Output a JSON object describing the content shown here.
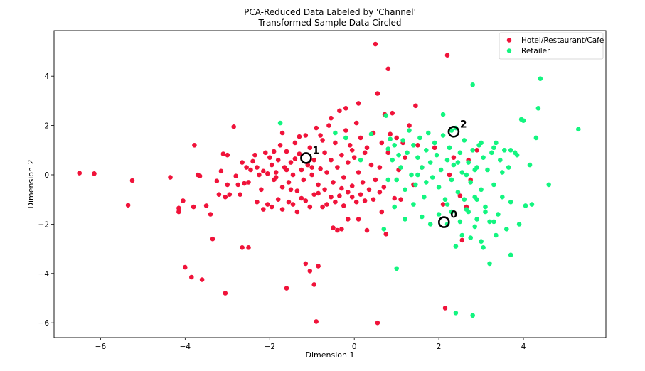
{
  "chart_data": {
    "type": "scatter",
    "title": "PCA-Reduced Data Labeled by 'Channel'",
    "subtitle": "Transformed Sample Data Circled",
    "xlabel": "Dimension 1",
    "ylabel": "Dimension 2",
    "xlim": [
      -7.1,
      5.95
    ],
    "ylim": [
      -6.6,
      5.85
    ],
    "xticks": [
      -6,
      -4,
      -2,
      0,
      2,
      4
    ],
    "yticks": [
      -6,
      -4,
      -2,
      0,
      2,
      4
    ],
    "legend_position": "top-right",
    "series": [
      {
        "name": "Hotel/Restaurant/Cafe",
        "color": "#f0133a",
        "points": [
          [
            -6.5,
            0.07
          ],
          [
            -6.15,
            0.05
          ],
          [
            -5.35,
            -1.23
          ],
          [
            -5.25,
            -0.23
          ],
          [
            -4.35,
            -0.1
          ],
          [
            -4.15,
            -1.35
          ],
          [
            -4.15,
            -1.5
          ],
          [
            -4.05,
            -1.05
          ],
          [
            -4.0,
            -3.75
          ],
          [
            -3.85,
            -4.15
          ],
          [
            -3.8,
            -1.3
          ],
          [
            -3.78,
            1.2
          ],
          [
            -3.7,
            0.0
          ],
          [
            -3.65,
            -0.05
          ],
          [
            -3.5,
            -1.25
          ],
          [
            -3.4,
            -1.6
          ],
          [
            -3.35,
            -2.6
          ],
          [
            -3.25,
            -0.25
          ],
          [
            -3.2,
            -0.8
          ],
          [
            -3.15,
            0.15
          ],
          [
            -3.1,
            0.85
          ],
          [
            -3.0,
            0.8
          ],
          [
            -3.05,
            -0.9
          ],
          [
            -3.0,
            -0.4
          ],
          [
            -2.95,
            -0.8
          ],
          [
            -2.85,
            1.95
          ],
          [
            -2.8,
            -0.05
          ],
          [
            -2.75,
            -0.4
          ],
          [
            -2.7,
            -0.8
          ],
          [
            -2.65,
            0.5
          ],
          [
            -2.6,
            -0.35
          ],
          [
            -2.55,
            0.3
          ],
          [
            -2.5,
            -0.3
          ],
          [
            -2.45,
            0.2
          ],
          [
            -2.4,
            0.55
          ],
          [
            -2.35,
            0.8
          ],
          [
            -2.3,
            0.3
          ],
          [
            -2.25,
            0.0
          ],
          [
            -2.2,
            -0.6
          ],
          [
            -2.15,
            0.15
          ],
          [
            -2.1,
            0.9
          ],
          [
            -2.0,
            0.7
          ],
          [
            -1.95,
            0.4
          ],
          [
            -1.9,
            -0.2
          ],
          [
            -1.85,
            0.1
          ],
          [
            -1.8,
            0.6
          ],
          [
            -1.75,
            1.2
          ],
          [
            -1.7,
            -0.5
          ],
          [
            -1.65,
            0.3
          ],
          [
            -1.6,
            0.95
          ],
          [
            -1.55,
            -0.3
          ],
          [
            -1.5,
            0.5
          ],
          [
            -1.45,
            0.0
          ],
          [
            -1.4,
            1.3
          ],
          [
            -1.35,
            -0.65
          ],
          [
            -1.3,
            0.85
          ],
          [
            -1.25,
            0.2
          ],
          [
            -1.2,
            -0.2
          ],
          [
            -1.15,
            1.6
          ],
          [
            -1.1,
            0.4
          ],
          [
            -1.05,
            1.1
          ],
          [
            -1.0,
            0.0
          ],
          [
            -0.95,
            0.6
          ],
          [
            -0.9,
            1.9
          ],
          [
            -0.85,
            -0.4
          ],
          [
            -0.8,
            0.25
          ],
          [
            -0.75,
            1.4
          ],
          [
            -0.7,
            0.9
          ],
          [
            -0.65,
            0.1
          ],
          [
            -0.6,
            2.0
          ],
          [
            -0.55,
            0.6
          ],
          [
            -0.5,
            -0.3
          ],
          [
            -0.45,
            1.3
          ],
          [
            -0.4,
            0.3
          ],
          [
            -0.35,
            2.6
          ],
          [
            -0.3,
            0.8
          ],
          [
            -0.25,
            -0.1
          ],
          [
            -0.2,
            1.8
          ],
          [
            -0.15,
            0.5
          ],
          [
            -0.1,
            1.2
          ],
          [
            -0.05,
            -0.45
          ],
          [
            0.0,
            0.7
          ],
          [
            0.05,
            2.1
          ],
          [
            0.1,
            0.1
          ],
          [
            0.15,
            1.5
          ],
          [
            0.2,
            -0.3
          ],
          [
            0.25,
            0.9
          ],
          [
            0.3,
            1.1
          ],
          [
            0.35,
            -0.6
          ],
          [
            0.4,
            0.4
          ],
          [
            0.45,
            1.7
          ],
          [
            0.5,
            -0.2
          ],
          [
            0.55,
            3.3
          ],
          [
            0.6,
            0.3
          ],
          [
            0.65,
            1.3
          ],
          [
            0.7,
            -0.5
          ],
          [
            0.72,
            2.45
          ],
          [
            0.5,
            5.3
          ],
          [
            0.8,
            4.3
          ],
          [
            0.85,
            1.65
          ],
          [
            0.9,
            2.5
          ],
          [
            0.95,
            -0.95
          ],
          [
            1.0,
            1.5
          ],
          [
            1.05,
            0.2
          ],
          [
            1.1,
            -1.0
          ],
          [
            1.2,
            0.7
          ],
          [
            1.3,
            2.0
          ],
          [
            1.4,
            -0.4
          ],
          [
            1.45,
            2.8
          ],
          [
            1.5,
            1.2
          ],
          [
            1.6,
            0.3
          ],
          [
            2.2,
            4.85
          ],
          [
            2.1,
            -1.2
          ],
          [
            2.25,
            0.0
          ],
          [
            2.35,
            0.7
          ],
          [
            2.5,
            -0.85
          ],
          [
            2.55,
            -2.65
          ],
          [
            2.65,
            -1.3
          ],
          [
            2.7,
            0.6
          ],
          [
            2.75,
            -0.2
          ],
          [
            2.9,
            1.0
          ],
          [
            2.15,
            -5.4
          ],
          [
            -3.6,
            -4.25
          ],
          [
            -3.05,
            -4.8
          ],
          [
            -2.65,
            -2.95
          ],
          [
            -2.5,
            -2.95
          ],
          [
            -1.6,
            -4.6
          ],
          [
            -1.15,
            -3.6
          ],
          [
            -0.95,
            -4.45
          ],
          [
            -0.9,
            -5.95
          ],
          [
            -1.05,
            -3.9
          ],
          [
            -0.85,
            -3.7
          ],
          [
            -0.5,
            -2.15
          ],
          [
            -0.4,
            -2.25
          ],
          [
            -0.3,
            -2.2
          ],
          [
            -0.15,
            -1.8
          ],
          [
            0.1,
            -1.8
          ],
          [
            0.3,
            -2.25
          ],
          [
            0.55,
            -6.0
          ],
          [
            0.75,
            -2.4
          ],
          [
            -2.3,
            -1.1
          ],
          [
            -2.15,
            -1.4
          ],
          [
            -2.05,
            -1.2
          ],
          [
            -1.95,
            -1.3
          ],
          [
            -1.8,
            -1.0
          ],
          [
            -1.7,
            -1.4
          ],
          [
            -1.55,
            -1.1
          ],
          [
            -1.45,
            -1.2
          ],
          [
            -1.35,
            -1.5
          ],
          [
            -1.25,
            -0.95
          ],
          [
            -1.15,
            -1.05
          ],
          [
            -1.05,
            -1.3
          ],
          [
            -0.95,
            -0.8
          ],
          [
            -0.85,
            -0.75
          ],
          [
            -0.75,
            -1.3
          ],
          [
            -0.65,
            -1.2
          ],
          [
            -0.55,
            -0.9
          ],
          [
            -0.45,
            -1.1
          ],
          [
            -0.35,
            -0.85
          ],
          [
            -0.25,
            -1.25
          ],
          [
            -0.15,
            -0.7
          ],
          [
            -0.05,
            -0.9
          ],
          [
            0.05,
            -1.1
          ],
          [
            0.15,
            -0.8
          ],
          [
            0.25,
            -1.05
          ],
          [
            0.45,
            -1.0
          ],
          [
            0.6,
            -0.7
          ],
          [
            0.65,
            -1.5
          ],
          [
            -1.9,
            0.95
          ],
          [
            -1.7,
            1.7
          ],
          [
            -1.3,
            1.55
          ],
          [
            -0.8,
            1.6
          ],
          [
            -0.55,
            2.3
          ],
          [
            -0.2,
            2.7
          ],
          [
            0.1,
            2.9
          ],
          [
            -0.05,
            1.0
          ],
          [
            -1.0,
            0.3
          ],
          [
            -1.4,
            0.65
          ],
          [
            -1.6,
            0.2
          ],
          [
            -1.85,
            -0.1
          ],
          [
            -2.05,
            0.05
          ],
          [
            -1.5,
            -0.6
          ],
          [
            -0.7,
            -0.6
          ],
          [
            -0.3,
            -0.55
          ],
          [
            0.8,
            0.9
          ],
          [
            1.15,
            1.3
          ],
          [
            1.9,
            1.1
          ]
        ]
      },
      {
        "name": "Retailer",
        "color": "#13f580",
        "points": [
          [
            -1.75,
            2.1
          ],
          [
            -0.45,
            1.7
          ],
          [
            -0.2,
            1.5
          ],
          [
            0.15,
            0.6
          ],
          [
            0.4,
            1.65
          ],
          [
            0.75,
            2.4
          ],
          [
            0.8,
            1.05
          ],
          [
            0.85,
            1.45
          ],
          [
            0.9,
            0.6
          ],
          [
            0.95,
            1.2
          ],
          [
            1.0,
            -0.2
          ],
          [
            1.05,
            0.8
          ],
          [
            1.1,
            0.3
          ],
          [
            1.15,
            1.4
          ],
          [
            1.2,
            -0.6
          ],
          [
            1.25,
            0.9
          ],
          [
            1.3,
            1.8
          ],
          [
            1.35,
            0.0
          ],
          [
            1.4,
            1.2
          ],
          [
            1.45,
            -0.4
          ],
          [
            1.5,
            0.7
          ],
          [
            1.55,
            1.5
          ],
          [
            1.6,
            0.3
          ],
          [
            1.65,
            -0.9
          ],
          [
            1.7,
            1.0
          ],
          [
            1.75,
            1.7
          ],
          [
            1.8,
            0.5
          ],
          [
            1.85,
            -0.1
          ],
          [
            1.9,
            1.3
          ],
          [
            1.95,
            0.8
          ],
          [
            2.0,
            -0.5
          ],
          [
            2.05,
            0.2
          ],
          [
            2.1,
            1.6
          ],
          [
            2.15,
            -1.0
          ],
          [
            2.2,
            0.6
          ],
          [
            2.25,
            1.1
          ],
          [
            2.3,
            -0.2
          ],
          [
            2.35,
            0.4
          ],
          [
            2.4,
            1.9
          ],
          [
            2.45,
            -0.7
          ],
          [
            2.5,
            0.9
          ],
          [
            2.55,
            0.1
          ],
          [
            2.6,
            1.4
          ],
          [
            2.65,
            -1.4
          ],
          [
            2.7,
            0.5
          ],
          [
            2.75,
            -0.3
          ],
          [
            2.8,
            1.0
          ],
          [
            2.85,
            -0.9
          ],
          [
            2.9,
            0.3
          ],
          [
            2.95,
            1.2
          ],
          [
            3.0,
            -0.6
          ],
          [
            3.05,
            0.7
          ],
          [
            3.1,
            -1.3
          ],
          [
            3.15,
            0.2
          ],
          [
            3.2,
            -1.9
          ],
          [
            3.25,
            0.9
          ],
          [
            3.3,
            -0.4
          ],
          [
            3.35,
            1.3
          ],
          [
            3.4,
            -1.6
          ],
          [
            3.45,
            0.6
          ],
          [
            3.5,
            -0.9
          ],
          [
            3.55,
            1.0
          ],
          [
            3.6,
            -2.2
          ],
          [
            3.65,
            0.3
          ],
          [
            3.7,
            -1.1
          ],
          [
            3.8,
            0.9
          ],
          [
            3.9,
            -2.0
          ],
          [
            3.95,
            2.25
          ],
          [
            4.05,
            -1.25
          ],
          [
            4.15,
            0.4
          ],
          [
            4.2,
            -1.2
          ],
          [
            4.3,
            1.5
          ],
          [
            4.35,
            2.7
          ],
          [
            4.4,
            3.9
          ],
          [
            4.6,
            -0.4
          ],
          [
            5.3,
            1.85
          ],
          [
            2.1,
            2.45
          ],
          [
            2.3,
            1.8
          ],
          [
            2.8,
            3.65
          ],
          [
            2.2,
            -2.0
          ],
          [
            2.4,
            -2.9
          ],
          [
            2.55,
            -2.45
          ],
          [
            2.75,
            -2.55
          ],
          [
            2.85,
            -2.1
          ],
          [
            3.0,
            -2.7
          ],
          [
            3.05,
            -2.95
          ],
          [
            3.2,
            -3.6
          ],
          [
            3.35,
            -2.45
          ],
          [
            3.7,
            -3.25
          ],
          [
            2.4,
            -5.6
          ],
          [
            2.8,
            -5.7
          ],
          [
            1.0,
            -3.8
          ],
          [
            0.8,
            -0.2
          ],
          [
            0.95,
            -1.3
          ],
          [
            1.2,
            -1.8
          ],
          [
            1.4,
            -1.2
          ],
          [
            1.6,
            -1.7
          ],
          [
            1.8,
            -2.0
          ],
          [
            2.0,
            -1.6
          ],
          [
            2.3,
            -1.5
          ],
          [
            2.5,
            -1.9
          ],
          [
            2.7,
            -1.5
          ],
          [
            2.9,
            -1.8
          ],
          [
            3.1,
            -1.5
          ],
          [
            3.3,
            -1.9
          ],
          [
            0.7,
            -2.2
          ],
          [
            1.5,
            0.0
          ],
          [
            1.7,
            -0.3
          ],
          [
            2.2,
            -1.2
          ],
          [
            2.6,
            -1.0
          ],
          [
            2.9,
            -1.0
          ],
          [
            3.5,
            0.1
          ],
          [
            3.7,
            1.0
          ],
          [
            3.85,
            0.8
          ],
          [
            4.0,
            2.2
          ],
          [
            3.3,
            1.1
          ],
          [
            3.0,
            1.3
          ],
          [
            2.85,
            0.2
          ],
          [
            2.65,
            0.0
          ],
          [
            2.45,
            0.5
          ]
        ]
      }
    ],
    "samples": [
      {
        "label": "0",
        "x": 2.12,
        "y": -1.92,
        "label_color": "#1f77b4"
      },
      {
        "label": "1",
        "x": -1.14,
        "y": 0.68,
        "label_color": "#ff7f0e"
      },
      {
        "label": "2",
        "x": 2.35,
        "y": 1.75,
        "label_color": "#2ca02c"
      }
    ]
  }
}
